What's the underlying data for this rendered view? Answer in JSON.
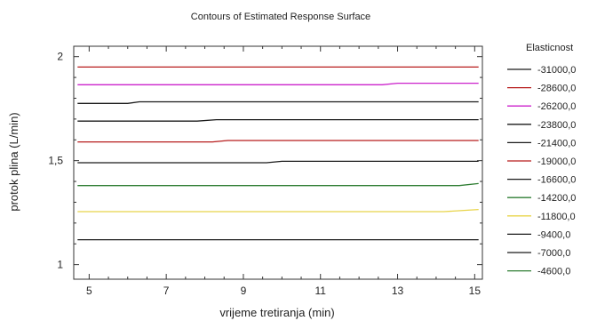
{
  "chart_data": {
    "type": "line",
    "title": "Contours of Estimated Response Surface",
    "xlabel": "vrijeme tretiranja (min)",
    "ylabel": "protok plina (L/min)",
    "xlim": [
      4.6,
      15.2
    ],
    "ylim": [
      0.93,
      2.05
    ],
    "x_ticks": [
      5,
      7,
      9,
      11,
      13,
      15
    ],
    "x_tick_labels": [
      "5",
      "7",
      "9",
      "11",
      "13",
      "15"
    ],
    "y_ticks": [
      1,
      1.5,
      2
    ],
    "y_tick_labels": [
      "1",
      "1,5",
      "2"
    ],
    "legend_title": "Elasticnost",
    "legend_position": "right",
    "grid": false,
    "series": [
      {
        "name": "-31000,0",
        "color": "#1a1a1a",
        "x": [
          4.7,
          15.1
        ],
        "y": [
          1.12,
          1.12
        ]
      },
      {
        "name": "-28600,0",
        "color": "#e8d44a",
        "x": [
          4.7,
          14.2,
          15.1
        ],
        "y": [
          1.255,
          1.255,
          1.265
        ]
      },
      {
        "name": "-26200,0",
        "color": "#2e7d32",
        "x": [
          4.7,
          14.6,
          15.1
        ],
        "y": [
          1.38,
          1.38,
          1.39
        ]
      },
      {
        "name": "-23800,0",
        "color": "#1a1a1a",
        "x": [
          4.7,
          9.6,
          10.0,
          15.1
        ],
        "y": [
          1.49,
          1.49,
          1.497,
          1.497
        ]
      },
      {
        "name": "-21400,0",
        "color": "#b71c1c",
        "x": [
          4.7,
          8.2,
          8.6,
          15.1
        ],
        "y": [
          1.59,
          1.59,
          1.597,
          1.597
        ]
      },
      {
        "name": "-19000,0",
        "color": "#1a1a1a",
        "x": [
          4.7,
          7.8,
          8.3,
          15.1
        ],
        "y": [
          1.69,
          1.69,
          1.697,
          1.697
        ]
      },
      {
        "name": "-16600,0",
        "color": "#1a1a1a",
        "x": [
          4.7,
          6.0,
          6.3,
          15.1
        ],
        "y": [
          1.775,
          1.775,
          1.783,
          1.783
        ]
      },
      {
        "name": "-14200,0",
        "color": "#cc22cc",
        "x": [
          4.7,
          12.6,
          13.0,
          15.1
        ],
        "y": [
          1.865,
          1.865,
          1.872,
          1.872
        ]
      },
      {
        "name": "-11800,0",
        "color": "#b71c1c",
        "x": [
          4.7,
          15.1
        ],
        "y": [
          1.95,
          1.95
        ]
      }
    ],
    "legend": [
      {
        "label": "-31000,0",
        "color": "#1a1a1a"
      },
      {
        "label": "-28600,0",
        "color": "#b71c1c"
      },
      {
        "label": "-26200,0",
        "color": "#cc22cc"
      },
      {
        "label": "-23800,0",
        "color": "#1a1a1a"
      },
      {
        "label": "-21400,0",
        "color": "#1a1a1a"
      },
      {
        "label": "-19000,0",
        "color": "#b71c1c"
      },
      {
        "label": "-16600,0",
        "color": "#1a1a1a"
      },
      {
        "label": "-14200,0",
        "color": "#2e7d32"
      },
      {
        "label": "-11800,0",
        "color": "#e8d44a"
      },
      {
        "label": "-9400,0",
        "color": "#1a1a1a"
      },
      {
        "label": "-7000,0",
        "color": "#1a1a1a"
      },
      {
        "label": "-4600,0",
        "color": "#2e7d32"
      }
    ]
  }
}
